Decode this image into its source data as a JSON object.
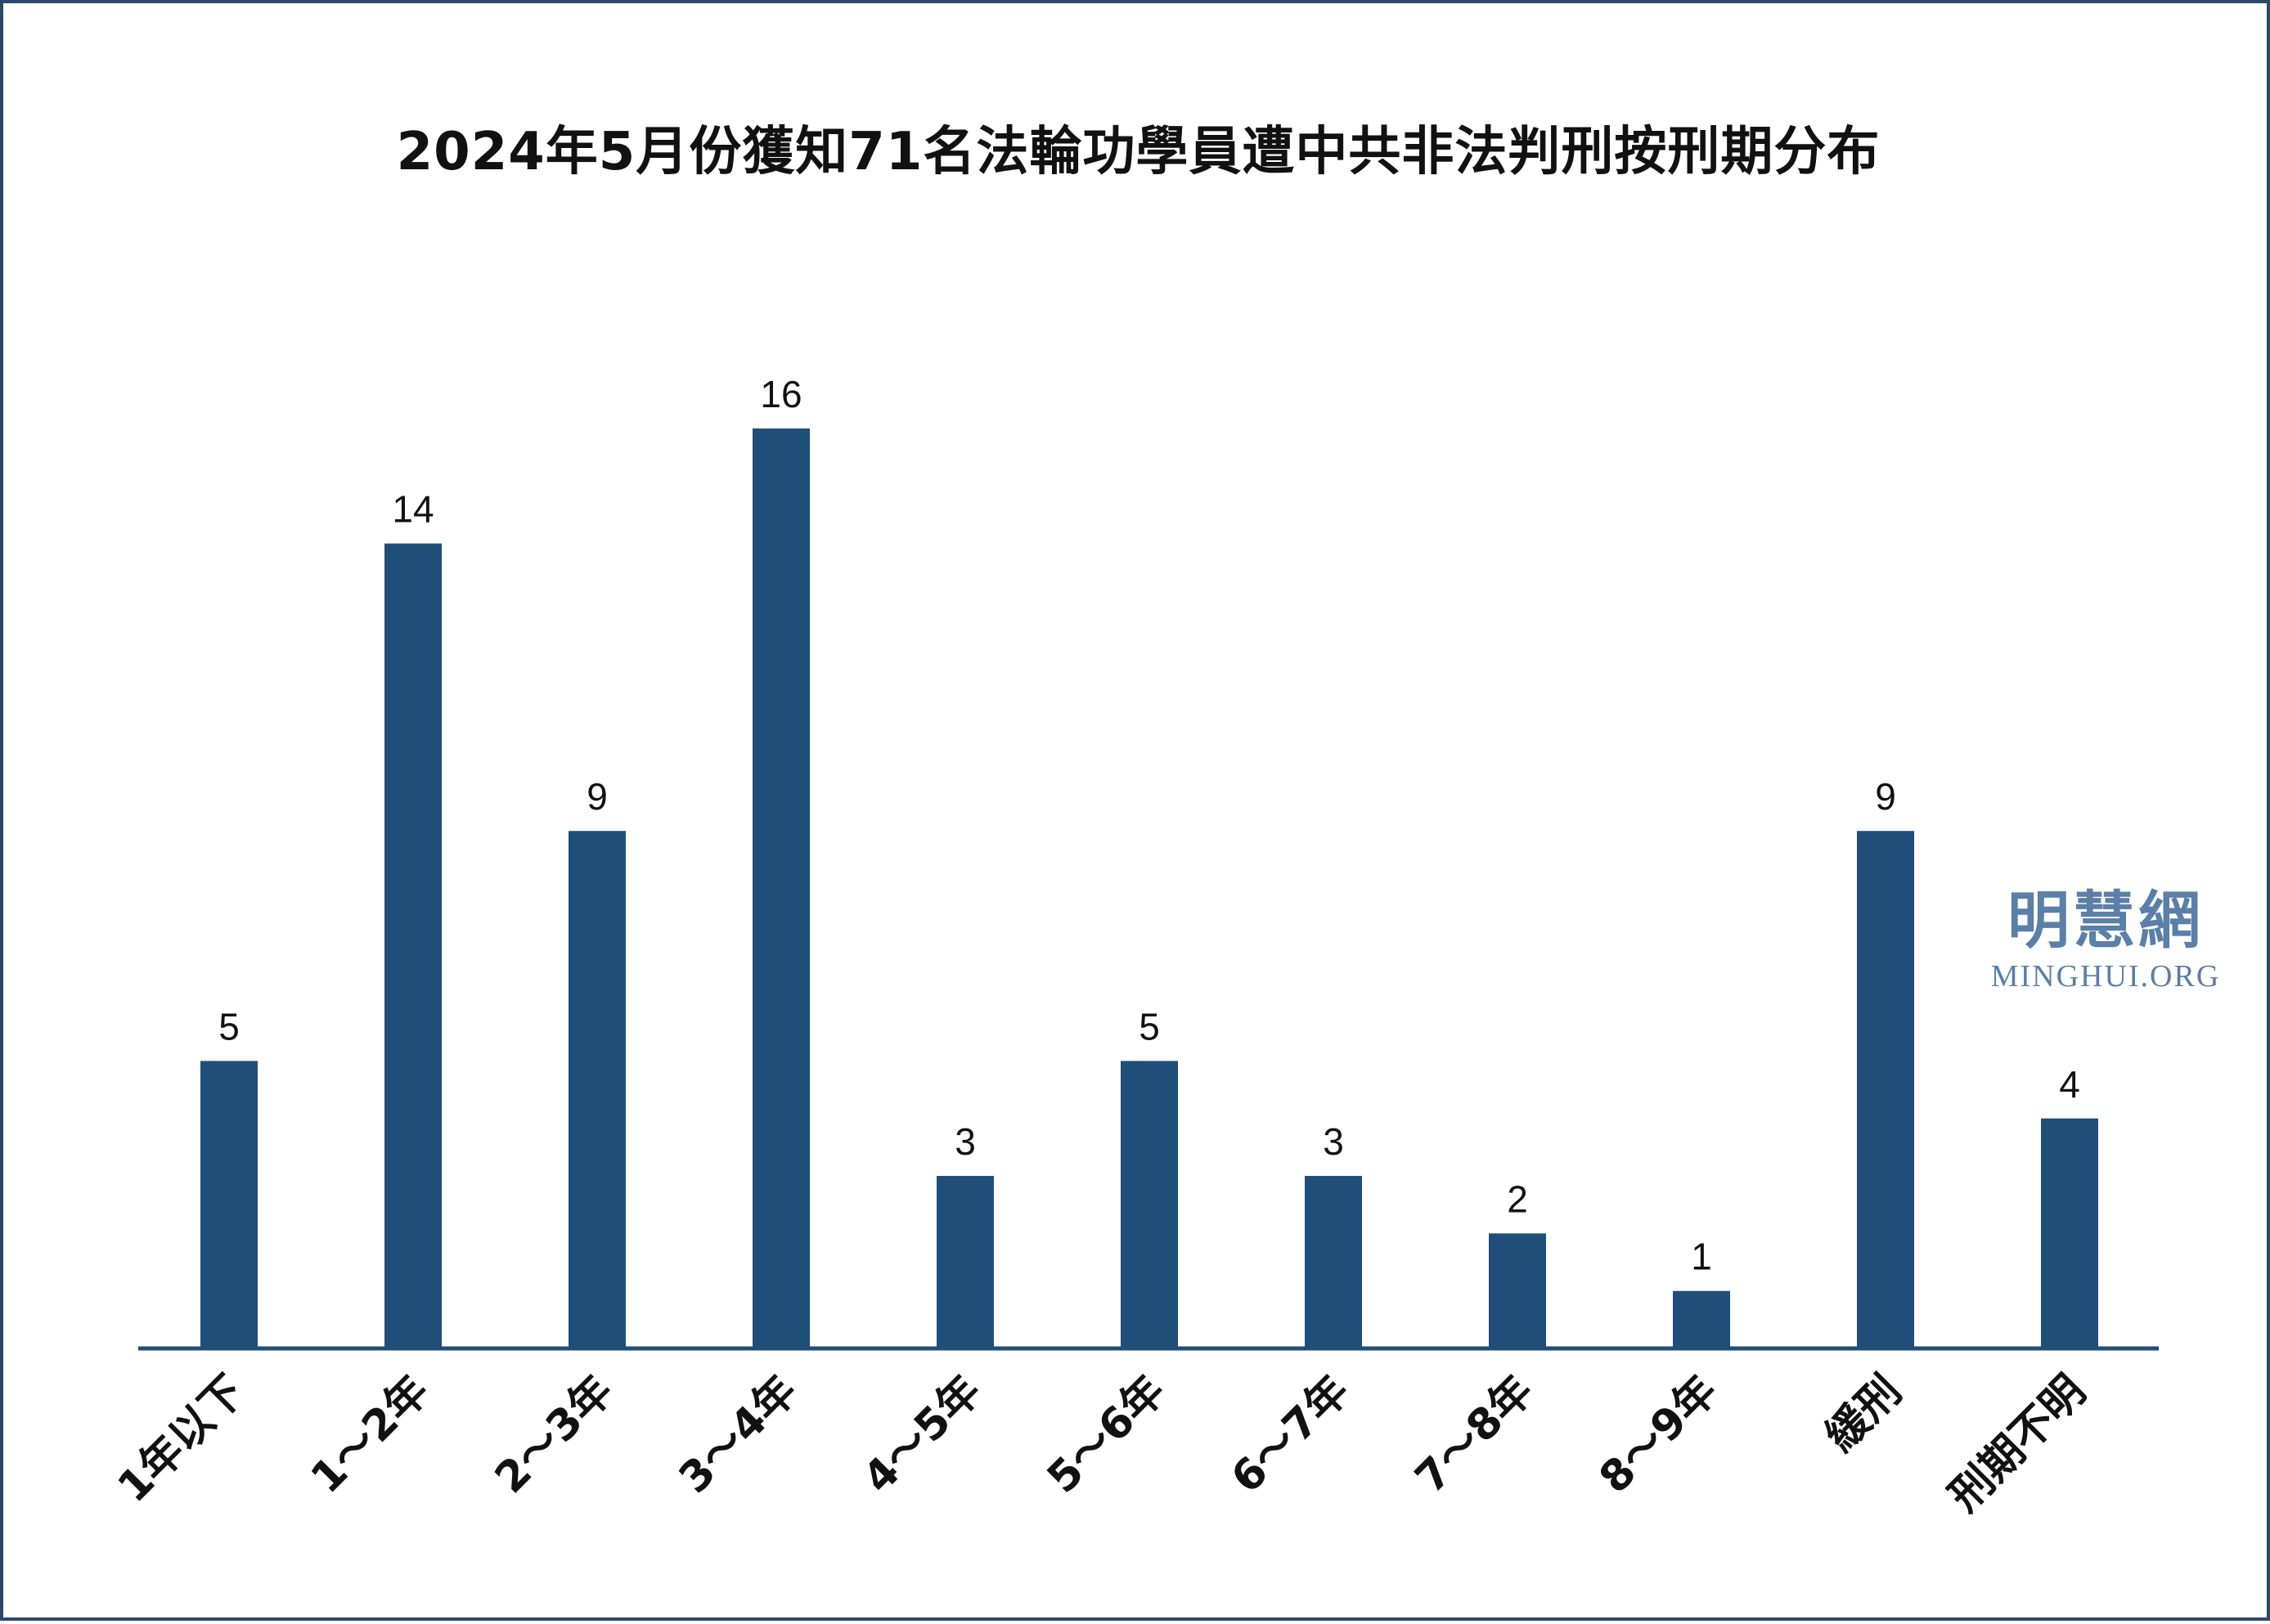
{
  "chart_data": {
    "type": "bar",
    "title": "2024年5月份獲知71名法輪功學員遭中共非法判刑按刑期分布",
    "categories": [
      "1年以下",
      "1～2年",
      "2～3年",
      "3～4年",
      "4～5年",
      "5～6年",
      "6～7年",
      "7～8年",
      "8～9年",
      "緩刑",
      "刑期不明"
    ],
    "values": [
      5,
      14,
      9,
      16,
      3,
      5,
      3,
      2,
      1,
      9,
      4
    ],
    "xlabel": "",
    "ylabel": "",
    "ylim": [
      0,
      16
    ],
    "grid": false,
    "legend": "none",
    "bar_color": "#1f4e79",
    "axis_color": "#1f4e79"
  },
  "watermark": {
    "chinese": "明慧網",
    "english": "MINGHUI.ORG",
    "color": "#5a7fa8"
  }
}
